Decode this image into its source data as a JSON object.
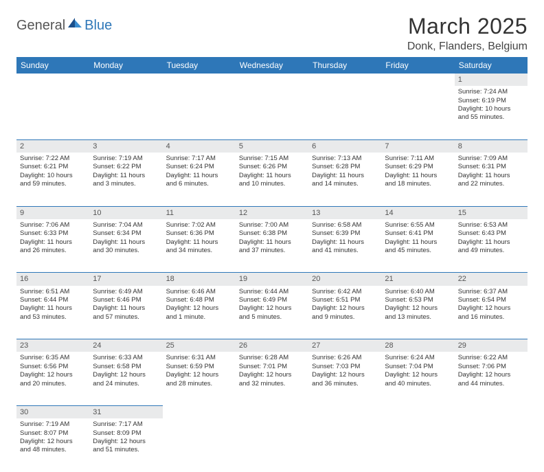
{
  "logo": {
    "general": "General",
    "blue": "Blue"
  },
  "title": "March 2025",
  "location": "Donk, Flanders, Belgium",
  "colors": {
    "header_bg": "#2e77b8",
    "header_fg": "#ffffff",
    "daynum_bg": "#e9eaeb",
    "daynum_fg": "#555555",
    "border": "#2e77b8",
    "page_bg": "#ffffff"
  },
  "day_headers": [
    "Sunday",
    "Monday",
    "Tuesday",
    "Wednesday",
    "Thursday",
    "Friday",
    "Saturday"
  ],
  "weeks": [
    {
      "nums": [
        "",
        "",
        "",
        "",
        "",
        "",
        "1"
      ],
      "cells": [
        null,
        null,
        null,
        null,
        null,
        null,
        {
          "sunrise": "Sunrise: 7:24 AM",
          "sunset": "Sunset: 6:19 PM",
          "day1": "Daylight: 10 hours",
          "day2": "and 55 minutes."
        }
      ]
    },
    {
      "nums": [
        "2",
        "3",
        "4",
        "5",
        "6",
        "7",
        "8"
      ],
      "cells": [
        {
          "sunrise": "Sunrise: 7:22 AM",
          "sunset": "Sunset: 6:21 PM",
          "day1": "Daylight: 10 hours",
          "day2": "and 59 minutes."
        },
        {
          "sunrise": "Sunrise: 7:19 AM",
          "sunset": "Sunset: 6:22 PM",
          "day1": "Daylight: 11 hours",
          "day2": "and 3 minutes."
        },
        {
          "sunrise": "Sunrise: 7:17 AM",
          "sunset": "Sunset: 6:24 PM",
          "day1": "Daylight: 11 hours",
          "day2": "and 6 minutes."
        },
        {
          "sunrise": "Sunrise: 7:15 AM",
          "sunset": "Sunset: 6:26 PM",
          "day1": "Daylight: 11 hours",
          "day2": "and 10 minutes."
        },
        {
          "sunrise": "Sunrise: 7:13 AM",
          "sunset": "Sunset: 6:28 PM",
          "day1": "Daylight: 11 hours",
          "day2": "and 14 minutes."
        },
        {
          "sunrise": "Sunrise: 7:11 AM",
          "sunset": "Sunset: 6:29 PM",
          "day1": "Daylight: 11 hours",
          "day2": "and 18 minutes."
        },
        {
          "sunrise": "Sunrise: 7:09 AM",
          "sunset": "Sunset: 6:31 PM",
          "day1": "Daylight: 11 hours",
          "day2": "and 22 minutes."
        }
      ]
    },
    {
      "nums": [
        "9",
        "10",
        "11",
        "12",
        "13",
        "14",
        "15"
      ],
      "cells": [
        {
          "sunrise": "Sunrise: 7:06 AM",
          "sunset": "Sunset: 6:33 PM",
          "day1": "Daylight: 11 hours",
          "day2": "and 26 minutes."
        },
        {
          "sunrise": "Sunrise: 7:04 AM",
          "sunset": "Sunset: 6:34 PM",
          "day1": "Daylight: 11 hours",
          "day2": "and 30 minutes."
        },
        {
          "sunrise": "Sunrise: 7:02 AM",
          "sunset": "Sunset: 6:36 PM",
          "day1": "Daylight: 11 hours",
          "day2": "and 34 minutes."
        },
        {
          "sunrise": "Sunrise: 7:00 AM",
          "sunset": "Sunset: 6:38 PM",
          "day1": "Daylight: 11 hours",
          "day2": "and 37 minutes."
        },
        {
          "sunrise": "Sunrise: 6:58 AM",
          "sunset": "Sunset: 6:39 PM",
          "day1": "Daylight: 11 hours",
          "day2": "and 41 minutes."
        },
        {
          "sunrise": "Sunrise: 6:55 AM",
          "sunset": "Sunset: 6:41 PM",
          "day1": "Daylight: 11 hours",
          "day2": "and 45 minutes."
        },
        {
          "sunrise": "Sunrise: 6:53 AM",
          "sunset": "Sunset: 6:43 PM",
          "day1": "Daylight: 11 hours",
          "day2": "and 49 minutes."
        }
      ]
    },
    {
      "nums": [
        "16",
        "17",
        "18",
        "19",
        "20",
        "21",
        "22"
      ],
      "cells": [
        {
          "sunrise": "Sunrise: 6:51 AM",
          "sunset": "Sunset: 6:44 PM",
          "day1": "Daylight: 11 hours",
          "day2": "and 53 minutes."
        },
        {
          "sunrise": "Sunrise: 6:49 AM",
          "sunset": "Sunset: 6:46 PM",
          "day1": "Daylight: 11 hours",
          "day2": "and 57 minutes."
        },
        {
          "sunrise": "Sunrise: 6:46 AM",
          "sunset": "Sunset: 6:48 PM",
          "day1": "Daylight: 12 hours",
          "day2": "and 1 minute."
        },
        {
          "sunrise": "Sunrise: 6:44 AM",
          "sunset": "Sunset: 6:49 PM",
          "day1": "Daylight: 12 hours",
          "day2": "and 5 minutes."
        },
        {
          "sunrise": "Sunrise: 6:42 AM",
          "sunset": "Sunset: 6:51 PM",
          "day1": "Daylight: 12 hours",
          "day2": "and 9 minutes."
        },
        {
          "sunrise": "Sunrise: 6:40 AM",
          "sunset": "Sunset: 6:53 PM",
          "day1": "Daylight: 12 hours",
          "day2": "and 13 minutes."
        },
        {
          "sunrise": "Sunrise: 6:37 AM",
          "sunset": "Sunset: 6:54 PM",
          "day1": "Daylight: 12 hours",
          "day2": "and 16 minutes."
        }
      ]
    },
    {
      "nums": [
        "23",
        "24",
        "25",
        "26",
        "27",
        "28",
        "29"
      ],
      "cells": [
        {
          "sunrise": "Sunrise: 6:35 AM",
          "sunset": "Sunset: 6:56 PM",
          "day1": "Daylight: 12 hours",
          "day2": "and 20 minutes."
        },
        {
          "sunrise": "Sunrise: 6:33 AM",
          "sunset": "Sunset: 6:58 PM",
          "day1": "Daylight: 12 hours",
          "day2": "and 24 minutes."
        },
        {
          "sunrise": "Sunrise: 6:31 AM",
          "sunset": "Sunset: 6:59 PM",
          "day1": "Daylight: 12 hours",
          "day2": "and 28 minutes."
        },
        {
          "sunrise": "Sunrise: 6:28 AM",
          "sunset": "Sunset: 7:01 PM",
          "day1": "Daylight: 12 hours",
          "day2": "and 32 minutes."
        },
        {
          "sunrise": "Sunrise: 6:26 AM",
          "sunset": "Sunset: 7:03 PM",
          "day1": "Daylight: 12 hours",
          "day2": "and 36 minutes."
        },
        {
          "sunrise": "Sunrise: 6:24 AM",
          "sunset": "Sunset: 7:04 PM",
          "day1": "Daylight: 12 hours",
          "day2": "and 40 minutes."
        },
        {
          "sunrise": "Sunrise: 6:22 AM",
          "sunset": "Sunset: 7:06 PM",
          "day1": "Daylight: 12 hours",
          "day2": "and 44 minutes."
        }
      ]
    },
    {
      "nums": [
        "30",
        "31",
        "",
        "",
        "",
        "",
        ""
      ],
      "cells": [
        {
          "sunrise": "Sunrise: 7:19 AM",
          "sunset": "Sunset: 8:07 PM",
          "day1": "Daylight: 12 hours",
          "day2": "and 48 minutes."
        },
        {
          "sunrise": "Sunrise: 7:17 AM",
          "sunset": "Sunset: 8:09 PM",
          "day1": "Daylight: 12 hours",
          "day2": "and 51 minutes."
        },
        null,
        null,
        null,
        null,
        null
      ]
    }
  ]
}
